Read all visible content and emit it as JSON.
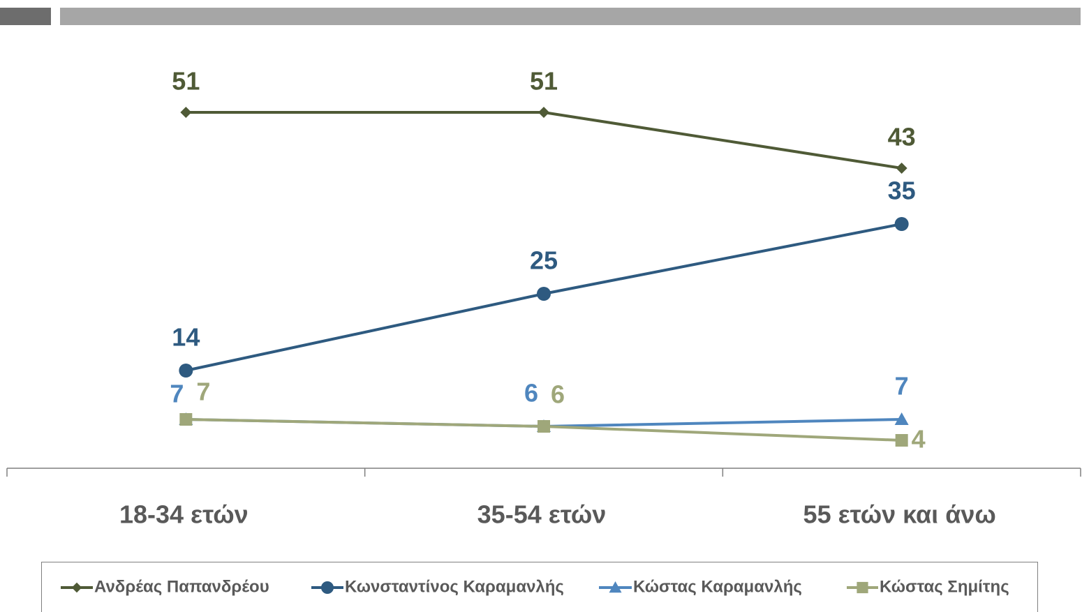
{
  "chart_data": {
    "type": "line",
    "categories": [
      "18-34 ετών",
      "35-54 ετών",
      "55 ετών και άνω"
    ],
    "series": [
      {
        "name": "Ανδρέας Παπανδρέου",
        "color": "#4f5a36",
        "marker": "diamond",
        "values": [
          51,
          51,
          43
        ]
      },
      {
        "name": "Κωνσταντίνος Καραμανλής",
        "color": "#2e5a80",
        "marker": "circle",
        "values": [
          14,
          25,
          35
        ]
      },
      {
        "name": "Κώστας Καραμανλής",
        "color": "#4f86be",
        "marker": "triangle",
        "values": [
          7,
          6,
          7
        ]
      },
      {
        "name": "Κώστας Σημίτης",
        "color": "#9fa77a",
        "marker": "square",
        "values": [
          7,
          6,
          4
        ]
      }
    ],
    "ylim": [
      0,
      60
    ],
    "legend": "bottom"
  }
}
